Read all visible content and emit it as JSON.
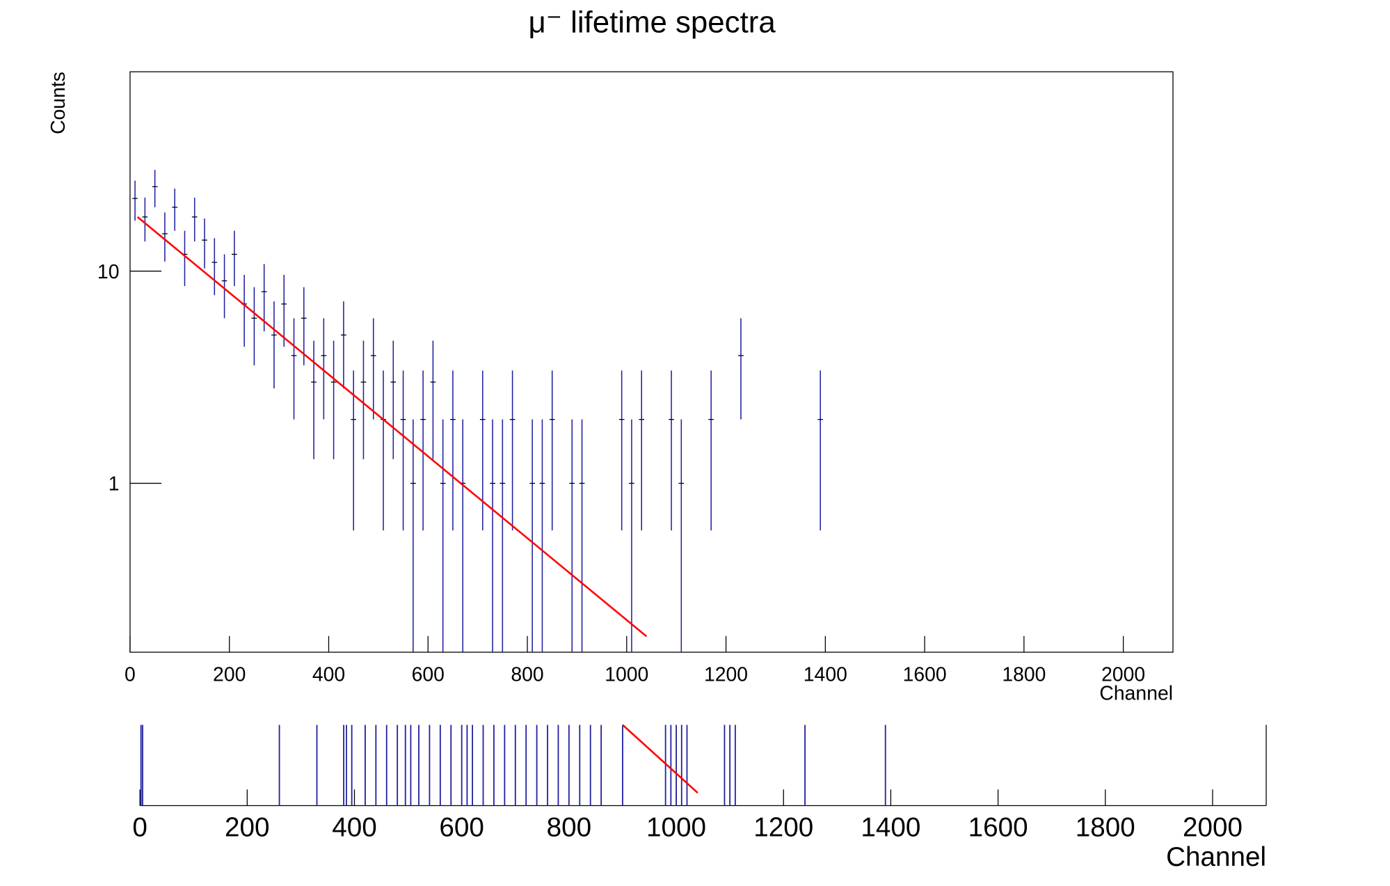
{
  "chart_data": [
    {
      "type": "errorbar",
      "title": "μ⁻ lifetime spectra",
      "xlabel": "Channel",
      "ylabel": "Counts",
      "log": true,
      "xlim": [
        0,
        2100
      ],
      "ylim": [
        0.16,
        87
      ],
      "xticks": [
        0,
        200,
        400,
        600,
        800,
        1000,
        1200,
        1400,
        1600,
        1800,
        2000
      ],
      "yticks": [
        1,
        10
      ],
      "series": [
        {
          "type": "errorbar",
          "color": "#2020a0",
          "x": [
            10,
            30,
            50,
            70,
            90,
            110,
            130,
            150,
            170,
            190,
            210,
            230,
            250,
            270,
            290,
            310,
            330,
            350,
            370,
            390,
            410,
            430,
            450,
            470,
            490,
            510,
            530,
            550,
            570,
            590,
            610,
            630,
            650,
            670,
            710,
            730,
            750,
            770,
            810,
            830,
            850,
            890,
            910,
            990,
            1010,
            1030,
            1090,
            1110,
            1170,
            1230,
            1390
          ],
          "values": [
            22,
            18,
            25,
            15,
            20,
            12,
            18,
            14,
            11,
            9,
            12,
            7,
            6,
            8,
            5,
            7,
            4,
            6,
            3,
            4,
            3,
            5,
            2,
            3,
            4,
            2,
            3,
            2,
            1,
            2,
            3,
            1,
            2,
            1,
            2,
            1,
            1,
            2,
            1,
            1,
            2,
            1,
            1,
            2,
            1,
            2,
            2,
            1,
            2,
            4,
            2
          ],
          "errors": [
            4.7,
            4.2,
            5,
            3.9,
            4.5,
            3.5,
            4.2,
            3.7,
            3.3,
            3,
            3.5,
            2.6,
            2.4,
            2.8,
            2.2,
            2.6,
            2,
            2.4,
            1.7,
            2,
            1.7,
            2.2,
            1.4,
            1.7,
            2,
            1.4,
            1.7,
            1.4,
            1,
            1.4,
            1.7,
            1,
            1.4,
            1,
            1.4,
            1,
            1,
            1.4,
            1,
            1,
            1.4,
            1,
            1,
            1.4,
            1,
            1.4,
            1.4,
            1,
            1.4,
            2,
            1.4
          ]
        },
        {
          "type": "line",
          "color": "#ff0000",
          "x": [
            15,
            1040
          ],
          "values": [
            18,
            0.19
          ]
        }
      ]
    },
    {
      "type": "errorbar",
      "xlabel": "Channel",
      "log": false,
      "xlim": [
        0,
        2100
      ],
      "ylim": [
        0.16,
        0.35
      ],
      "xticks": [
        0,
        200,
        400,
        600,
        800,
        1000,
        1200,
        1400,
        1600,
        1800,
        2000
      ],
      "series": [
        {
          "type": "bar",
          "color": "#2020a0",
          "x": [
            2,
            5,
            260,
            330,
            380,
            385,
            395,
            420,
            440,
            460,
            480,
            495,
            505,
            520,
            540,
            560,
            580,
            600,
            610,
            620,
            640,
            660,
            680,
            700,
            720,
            740,
            760,
            780,
            800,
            820,
            840,
            860,
            900,
            980,
            990,
            1000,
            1010,
            1020,
            1090,
            1100,
            1110,
            1240,
            1390
          ],
          "values": [
            0.35,
            0.35,
            0.35,
            0.35,
            0.35,
            0.35,
            0.35,
            0.35,
            0.35,
            0.35,
            0.35,
            0.35,
            0.35,
            0.35,
            0.35,
            0.35,
            0.35,
            0.35,
            0.35,
            0.35,
            0.35,
            0.35,
            0.35,
            0.35,
            0.35,
            0.35,
            0.35,
            0.35,
            0.35,
            0.35,
            0.35,
            0.35,
            0.35,
            0.35,
            0.35,
            0.35,
            0.35,
            0.35,
            0.35,
            0.35,
            0.35,
            0.35,
            0.35
          ]
        },
        {
          "type": "line",
          "color": "#ff0000",
          "x": [
            900,
            1040
          ],
          "values": [
            0.35,
            0.19
          ]
        }
      ]
    }
  ]
}
